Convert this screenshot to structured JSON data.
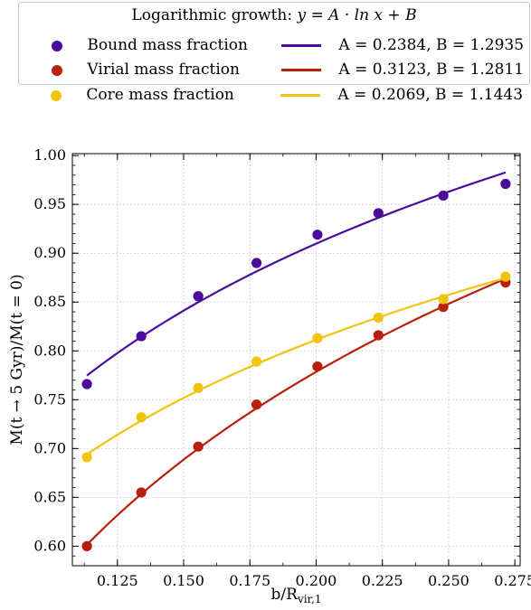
{
  "chart_data": {
    "type": "scatter",
    "xlabel_main": "b/R",
    "xlabel_sub": "vir,1",
    "ylabel": "M(t → 5 Gyr)/M(t = 0)",
    "xlim": [
      0.108,
      0.277
    ],
    "ylim": [
      0.58,
      1.002
    ],
    "xticks": [
      "0.125",
      "0.150",
      "0.175",
      "0.200",
      "0.225",
      "0.250",
      "0.275"
    ],
    "yticks": [
      "0.60",
      "0.65",
      "0.70",
      "0.75",
      "0.80",
      "0.85",
      "0.90",
      "0.95",
      "1.00"
    ],
    "grid": true,
    "legend_title_prefix": "Logarithmic growth:",
    "legend_title_math": "y = A · ln x + B",
    "x": [
      0.1135,
      0.134,
      0.1555,
      0.1775,
      0.2005,
      0.2235,
      0.248,
      0.2715
    ],
    "series": [
      {
        "name": "Bound mass fraction",
        "fit_label": "A = 0.2384, B = 1.2935",
        "color": "#4b0c9e",
        "A": 0.2384,
        "B": 1.2935,
        "values": [
          0.766,
          0.815,
          0.856,
          0.89,
          0.919,
          0.941,
          0.959,
          0.971
        ]
      },
      {
        "name": "Virial mass fraction",
        "fit_label": "A = 0.3123, B = 1.2811",
        "color": "#b8200c",
        "A": 0.3123,
        "B": 1.2811,
        "values": [
          0.6,
          0.655,
          0.702,
          0.745,
          0.784,
          0.816,
          0.845,
          0.87
        ]
      },
      {
        "name": "Core mass fraction",
        "fit_label": "A = 0.2069, B = 1.1443",
        "color": "#f1c40f",
        "A": 0.2069,
        "B": 1.1443,
        "values": [
          0.691,
          0.732,
          0.762,
          0.789,
          0.813,
          0.834,
          0.853,
          0.876
        ]
      }
    ]
  }
}
